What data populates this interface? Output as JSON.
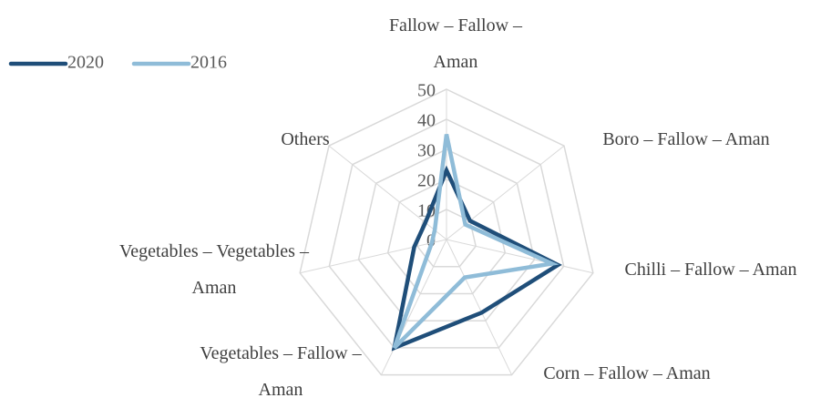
{
  "chart_data": {
    "type": "radar",
    "categories": [
      "Fallow – Fallow – Aman",
      "Boro – Fallow – Aman",
      "Chilli – Fallow – Aman",
      "Corn – Fallow – Aman",
      "Vegetables – Fallow – Aman",
      "Vegetables – Vegetables – Aman",
      "Others"
    ],
    "series": [
      {
        "name": "2020",
        "color": "#1f4e79",
        "values": [
          23,
          10,
          38,
          27,
          40,
          11,
          9
        ]
      },
      {
        "name": "2016",
        "color": "#8fbcd8",
        "values": [
          35,
          8,
          36,
          14,
          40,
          5,
          5
        ]
      }
    ],
    "ylim": [
      0,
      50
    ],
    "yticks": [
      0,
      10,
      20,
      30,
      40,
      50
    ],
    "grid": true,
    "legend": "top-left"
  }
}
